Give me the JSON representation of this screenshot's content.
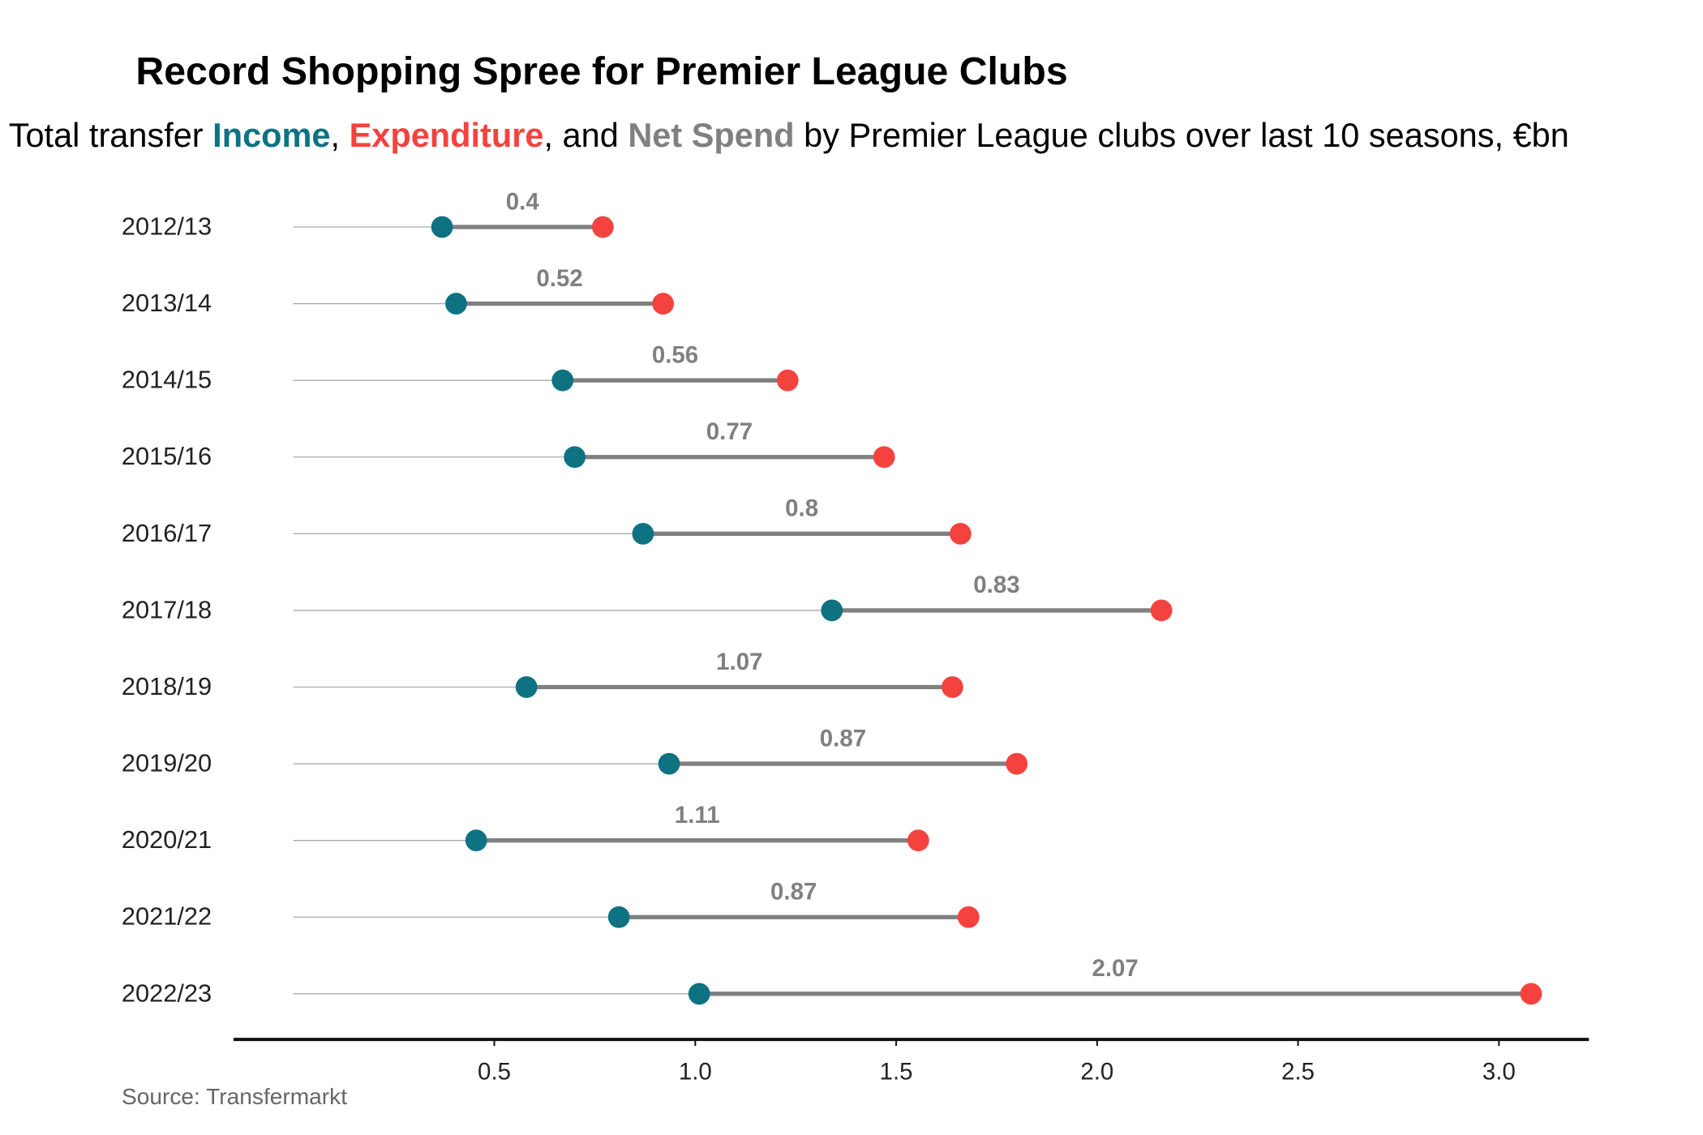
{
  "chart_data": {
    "type": "dumbbell",
    "title": "Record Shopping Spree for Premier League Clubs",
    "subtitle": [
      "Total transfer ",
      ", ",
      ", and ",
      " by Premier League clubs over last 10 seasons, €bn"
    ],
    "categories": [
      "2012/13",
      "2013/14",
      "2014/15",
      "2015/16",
      "2016/17",
      "2017/18",
      "2018/19",
      "2019/20",
      "2020/21",
      "2021/22",
      "2022/23"
    ],
    "series": [
      {
        "name": "Income",
        "color": "#0e7282",
        "values": [
          0.37,
          0.405,
          0.67,
          0.7,
          0.87,
          1.34,
          0.58,
          0.935,
          0.455,
          0.81,
          1.01
        ]
      },
      {
        "name": "Expenditure",
        "color": "#f4433f",
        "values": [
          0.77,
          0.92,
          1.23,
          1.47,
          1.66,
          2.16,
          1.64,
          1.8,
          1.555,
          1.68,
          3.08
        ]
      },
      {
        "name": "Net Spend",
        "color": "#808080",
        "values": [
          0.4,
          0.52,
          0.56,
          0.77,
          0.8,
          0.83,
          1.07,
          0.87,
          1.11,
          0.87,
          2.07
        ]
      }
    ],
    "xlim": [
      -0.149,
      3.224
    ],
    "xticks": [
      0.5,
      {
        "value": 1.0,
        "label": "1.0"
      },
      1.5,
      {
        "value": 2.0,
        "label": "2.0"
      },
      2.5,
      {
        "value": 3.0,
        "label": "3.0"
      }
    ],
    "source": "Source: Transfermarkt"
  }
}
